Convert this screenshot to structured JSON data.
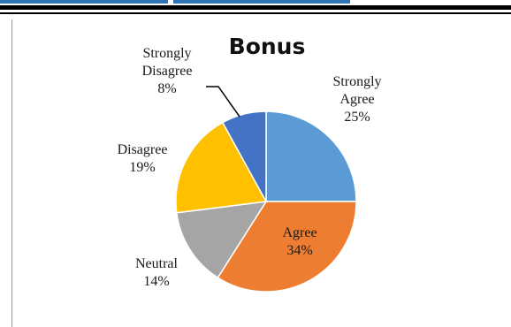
{
  "chart_data": {
    "type": "pie",
    "title": "Bonus",
    "slices": [
      {
        "label": "Strongly Agree",
        "value": 25,
        "display": "25%",
        "color": "#5b9bd5"
      },
      {
        "label": "Agree",
        "value": 34,
        "display": "34%",
        "color": "#ed7d31"
      },
      {
        "label": "Neutral",
        "value": 14,
        "display": "14%",
        "color": "#a5a5a5"
      },
      {
        "label": "Disagree",
        "value": 19,
        "display": "19%",
        "color": "#ffc000"
      },
      {
        "label": "Strongly Disagree",
        "value": 8,
        "display": "8%",
        "color": "#4472c4"
      }
    ],
    "legend": "none",
    "data_labels": "category and percentage"
  }
}
